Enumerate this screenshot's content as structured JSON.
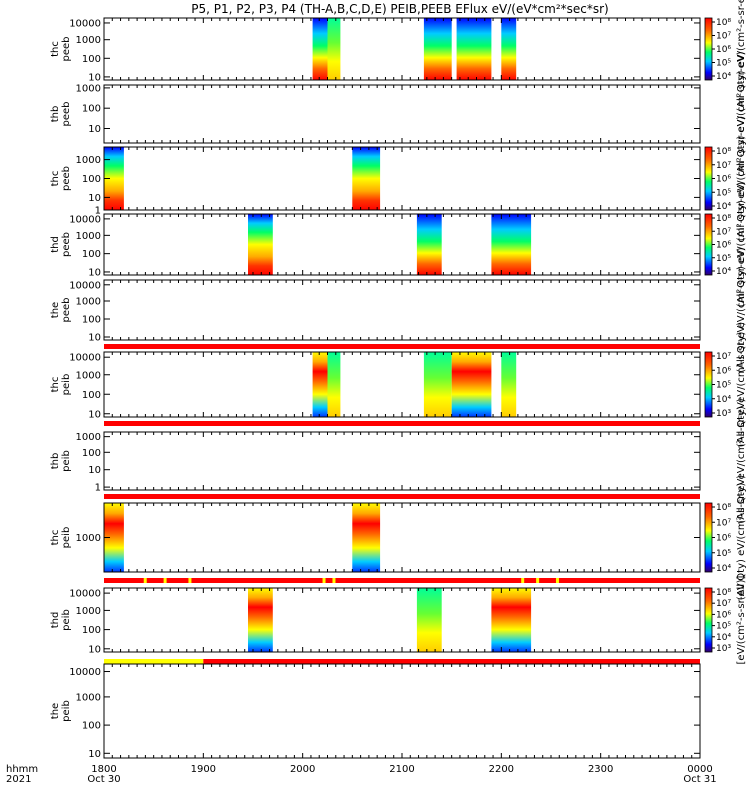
{
  "title": "P5, P1, P2, P3, P4 (TH-A,B,C,D,E) PEIB,PEEB EFlux eV/(eV*cm²*sec*sr)",
  "colors": {
    "high": "#ff0000",
    "mid": "#ffff00",
    "low": "#0000ff"
  },
  "chart_data": {
    "type": "heatmap",
    "x_range": [
      "18:00",
      "00:00"
    ],
    "x_ticks": [
      {
        "label": "1800",
        "t": 18.0
      },
      {
        "label": "1900",
        "t": 19.0
      },
      {
        "label": "2000",
        "t": 20.0
      },
      {
        "label": "2100",
        "t": 21.0
      },
      {
        "label": "2200",
        "t": 22.0
      },
      {
        "label": "2300",
        "t": 23.0
      },
      {
        "label": "0000",
        "t": 24.0
      }
    ],
    "x_label_row1": "hhmm",
    "x_label_row2": "2021",
    "x_date_start": "Oct 30",
    "x_date_end": "Oct 31",
    "panels": [
      {
        "name": "thc-peeb",
        "label1": "thc",
        "label2": "peeb",
        "y_ticks": [
          "10",
          "100",
          "1000",
          "10000"
        ],
        "y_tick_pos": [
          0.05,
          0.35,
          0.65,
          0.92
        ],
        "cb_label": "(All Qty) eV/(cm²-s-sr-eV)",
        "cb_ticks": [
          "10⁴",
          "10⁵",
          "10⁶",
          "10⁷",
          "10⁸"
        ],
        "status_bar": null,
        "blocks": [
          {
            "t0": 20.1,
            "t1": 20.25,
            "profile": "full"
          },
          {
            "t0": 20.25,
            "t1": 20.38,
            "profile": "mid"
          },
          {
            "t0": 21.22,
            "t1": 21.5,
            "profile": "full"
          },
          {
            "t0": 21.55,
            "t1": 21.9,
            "profile": "full"
          },
          {
            "t0": 22.0,
            "t1": 22.15,
            "profile": "full"
          }
        ]
      },
      {
        "name": "thb-peeb",
        "label1": "thb",
        "label2": "peeb",
        "y_ticks": [
          "10",
          "100",
          "1000"
        ],
        "y_tick_pos": [
          0.25,
          0.6,
          0.95
        ],
        "cb_label": "(All Qty) eV/(cm²-s-sr-eV)",
        "cb_ticks": [],
        "status_bar": null,
        "blocks": []
      },
      {
        "name": "thc-peeb2",
        "label1": "thc",
        "label2": "peeb",
        "y_ticks": [
          "1",
          "10",
          "100",
          "1000"
        ],
        "y_tick_pos": [
          0.0,
          0.2,
          0.5,
          0.8
        ],
        "cb_label": "(All Qty) eV/(cm²-s-sr-eV)",
        "cb_ticks": [
          "10⁴",
          "10⁵",
          "10⁶",
          "10⁷",
          "10⁸"
        ],
        "status_bar": null,
        "blocks": [
          {
            "t0": 18.0,
            "t1": 18.2,
            "profile": "low"
          },
          {
            "t0": 20.5,
            "t1": 20.78,
            "profile": "low"
          }
        ]
      },
      {
        "name": "thd-peeb",
        "label1": "thd",
        "label2": "peeb",
        "y_ticks": [
          "10",
          "100",
          "1000",
          "10000"
        ],
        "y_tick_pos": [
          0.05,
          0.35,
          0.65,
          0.92
        ],
        "cb_label": "(All Qty) eV/(cm²-s-sr-eV)",
        "cb_ticks": [
          "10⁴",
          "10⁵",
          "10⁶",
          "10⁷",
          "10⁸"
        ],
        "status_bar": null,
        "blocks": [
          {
            "t0": 19.45,
            "t1": 19.7,
            "profile": "low"
          },
          {
            "t0": 21.15,
            "t1": 21.4,
            "profile": "full"
          },
          {
            "t0": 21.9,
            "t1": 22.3,
            "profile": "full"
          }
        ]
      },
      {
        "name": "the-peeb",
        "label1": "the",
        "label2": "peeb",
        "y_ticks": [
          "10",
          "100",
          "1000",
          "10000"
        ],
        "y_tick_pos": [
          0.05,
          0.35,
          0.65,
          0.92
        ],
        "cb_label": "(All Qty) eV/(cm²-s-sr-eV)",
        "cb_ticks": [],
        "status_bar": "red",
        "blocks": []
      },
      {
        "name": "thc-peib",
        "label1": "thc",
        "label2": "peib",
        "y_ticks": [
          "10",
          "100",
          "1000",
          "10000"
        ],
        "y_tick_pos": [
          0.05,
          0.35,
          0.65,
          0.92
        ],
        "cb_label": "(All Qty) eV/(cm²-s-sr-eV)",
        "cb_ticks": [
          "10³",
          "10⁴",
          "10⁵",
          "10⁶",
          "10⁷"
        ],
        "status_bar": "red",
        "blocks": [
          {
            "t0": 20.1,
            "t1": 20.25,
            "profile": "ion"
          },
          {
            "t0": 20.25,
            "t1": 20.38,
            "profile": "mid"
          },
          {
            "t0": 21.22,
            "t1": 21.5,
            "profile": "mid"
          },
          {
            "t0": 21.5,
            "t1": 21.9,
            "profile": "ion"
          },
          {
            "t0": 22.0,
            "t1": 22.15,
            "profile": "mid"
          }
        ]
      },
      {
        "name": "thb-peib",
        "label1": "thb",
        "label2": "peib",
        "y_ticks": [
          "1",
          "10",
          "100",
          "1000"
        ],
        "y_tick_pos": [
          0.05,
          0.35,
          0.65,
          0.92
        ],
        "cb_label": "(All Qty) eV/(cm²-s-sr-eV)",
        "cb_ticks": [],
        "status_bar": "red",
        "blocks": []
      },
      {
        "name": "thc-peib2",
        "label1": "thc",
        "label2": "peib",
        "y_ticks": [
          "1000"
        ],
        "y_tick_pos": [
          0.5
        ],
        "cb_label": "(All Qty) eV/(cm²-s-sr-eV)",
        "cb_ticks": [
          "10⁴",
          "10⁵",
          "10⁶",
          "10⁷",
          "10⁸"
        ],
        "status_bar": "red-yellow",
        "blocks": [
          {
            "t0": 18.0,
            "t1": 18.2,
            "profile": "ion"
          },
          {
            "t0": 20.5,
            "t1": 20.78,
            "profile": "ion"
          }
        ]
      },
      {
        "name": "thd-peib",
        "label1": "thd",
        "label2": "peib",
        "y_ticks": [
          "10",
          "100",
          "1000",
          "10000"
        ],
        "y_tick_pos": [
          0.05,
          0.35,
          0.65,
          0.92
        ],
        "cb_label": "[eV/(cm²-s-sr-eV)]",
        "cb_ticks": [
          "10³",
          "10⁴",
          "10⁵",
          "10⁶",
          "10⁷",
          "10⁸"
        ],
        "status_bar": "yellow-red",
        "blocks": [
          {
            "t0": 19.45,
            "t1": 19.7,
            "profile": "ion"
          },
          {
            "t0": 21.15,
            "t1": 21.4,
            "profile": "mid"
          },
          {
            "t0": 21.9,
            "t1": 22.3,
            "profile": "ion"
          }
        ]
      },
      {
        "name": "the-peib",
        "label1": "the",
        "label2": "peib",
        "y_ticks": [
          "10",
          "100",
          "1000",
          "10000"
        ],
        "y_tick_pos": [
          0.05,
          0.35,
          0.65,
          0.92
        ],
        "cb_label": "",
        "cb_ticks": [],
        "status_bar": null,
        "blocks": []
      }
    ]
  }
}
